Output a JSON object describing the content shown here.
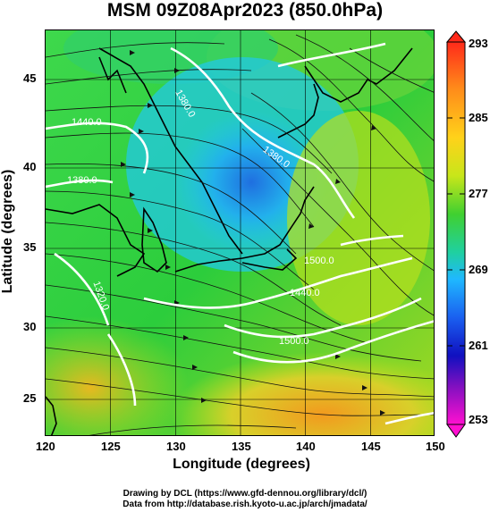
{
  "title": "MSM 09Z08Apr2023 (850.0hPa)",
  "x_axis": {
    "label": "Longitude (degrees)",
    "ticks": [
      "120",
      "125",
      "130",
      "135",
      "140",
      "145",
      "150"
    ],
    "range": [
      120,
      150
    ]
  },
  "y_axis": {
    "label": "Latitude  (degrees)",
    "ticks": [
      "25",
      "30",
      "35",
      "40",
      "45"
    ],
    "range": [
      22.5,
      47.5
    ]
  },
  "colorbar": {
    "ticks": [
      "293",
      "285",
      "277",
      "269",
      "261",
      "253"
    ],
    "range": [
      253,
      293
    ]
  },
  "contour_labels": [
    "1440.0",
    "1380.0",
    "1380.0",
    "1380.0",
    "1320.0",
    "1440.0",
    "1440.0",
    "1500.0",
    "1500.0",
    "1320.0",
    "1440.0",
    "1500.0"
  ],
  "credits": {
    "line1": "Drawing by DCL (https://www.gfd-dennou.org/library/dcl/)",
    "line2": "Data from http://database.rish.kyoto-u.ac.jp/arch/jmadata/"
  },
  "colors": {
    "cold": "#1f6fe0",
    "cool": "#22c8e6",
    "mid": "#2fd03a",
    "warm": "#b8e01c",
    "hot": "#f0a020"
  }
}
